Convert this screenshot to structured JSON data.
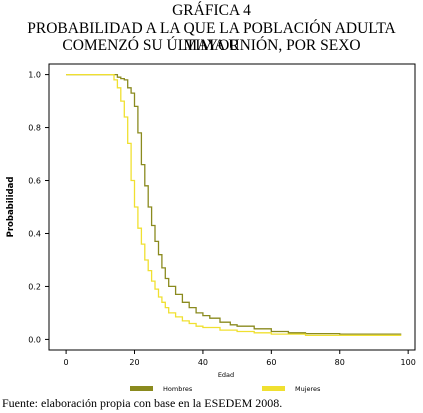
{
  "title_lines": [
    "GRÁFICA 4",
    "PROBABILIDAD A LA QUE LA POBLACIÓN ADULTA MAYOR",
    "COMENZÓ SU ÚLTIMA UNIÓN, POR SEXO"
  ],
  "source": "Fuente: elaboración propia con base en la ESEDEM 2008.",
  "chart_data": {
    "type": "line",
    "xlabel": "Edad",
    "ylabel": "Probabilidad",
    "xlim": [
      -5,
      102
    ],
    "ylim": [
      -0.04,
      1.04
    ],
    "xticks": [
      0,
      20,
      40,
      60,
      80,
      100
    ],
    "yticks": [
      0.0,
      0.2,
      0.4,
      0.6,
      0.8,
      1.0
    ],
    "xtick_labels": [
      "0",
      "20",
      "40",
      "60",
      "80",
      "100"
    ],
    "ytick_labels": [
      "0.0",
      "0.2",
      "0.4",
      "0.6",
      "0.8",
      "1.0"
    ],
    "grid": false,
    "legend_position": "bottom",
    "series": [
      {
        "name": "Hombres",
        "color": "#8a8a1e",
        "x": [
          0,
          14,
          15,
          16,
          17,
          18,
          19,
          20,
          21,
          22,
          23,
          24,
          25,
          26,
          27,
          28,
          29,
          30,
          32,
          34,
          36,
          38,
          40,
          42,
          45,
          48,
          50,
          55,
          60,
          65,
          70,
          80,
          90,
          98
        ],
        "y": [
          1.0,
          1.0,
          0.99,
          0.985,
          0.98,
          0.95,
          0.93,
          0.88,
          0.78,
          0.66,
          0.58,
          0.5,
          0.43,
          0.37,
          0.32,
          0.27,
          0.23,
          0.2,
          0.17,
          0.14,
          0.12,
          0.1,
          0.09,
          0.08,
          0.065,
          0.055,
          0.05,
          0.04,
          0.03,
          0.025,
          0.022,
          0.02,
          0.02,
          0.02
        ]
      },
      {
        "name": "Mujeres",
        "color": "#f0e030",
        "x": [
          0,
          13,
          14,
          15,
          16,
          17,
          18,
          19,
          20,
          21,
          22,
          23,
          24,
          25,
          26,
          27,
          28,
          29,
          30,
          32,
          34,
          36,
          38,
          40,
          45,
          50,
          55,
          60,
          70,
          80,
          90,
          98
        ],
        "y": [
          1.0,
          1.0,
          0.98,
          0.95,
          0.9,
          0.84,
          0.74,
          0.6,
          0.5,
          0.42,
          0.36,
          0.3,
          0.26,
          0.22,
          0.19,
          0.16,
          0.14,
          0.12,
          0.1,
          0.085,
          0.07,
          0.06,
          0.05,
          0.045,
          0.035,
          0.03,
          0.025,
          0.02,
          0.015,
          0.015,
          0.015,
          0.015
        ]
      }
    ]
  }
}
